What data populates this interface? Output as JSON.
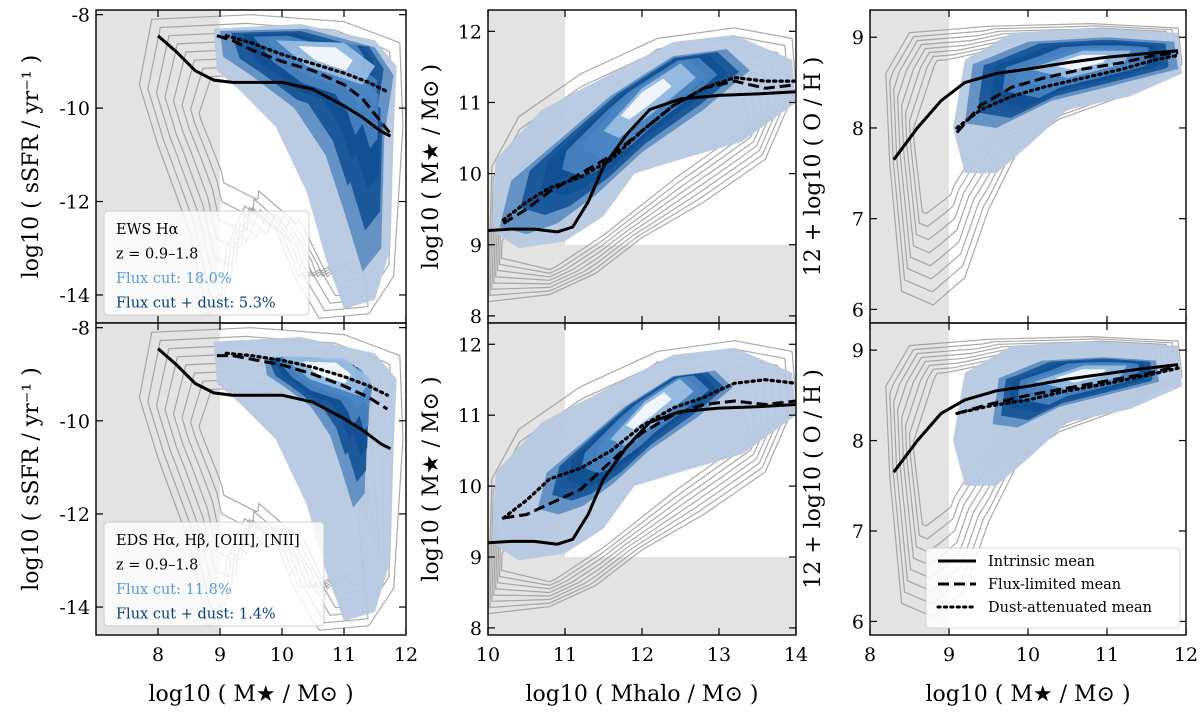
{
  "colors": {
    "excluded_region": "#e3e3e3",
    "parent_contour": "#9a9a9a",
    "density_light": "#b7c8df",
    "density_mid": "#5b8cc2",
    "density_dark": "#0e4f92",
    "density_core": "#ffffff",
    "flux_cut_text": "#5b9bd5",
    "flux_dust_text": "#0a3f7a"
  },
  "legend": {
    "intrinsic": "Intrinsic mean",
    "flux_limited": "Flux-limited mean",
    "dust_attenuated": "Dust-attenuated mean"
  },
  "annotations": {
    "ews": {
      "survey": "EWS Hα",
      "redshift": "z = 0.9–1.8",
      "flux_cut": "Flux cut: 18.0%",
      "flux_dust": "Flux cut + dust: 5.3%"
    },
    "eds": {
      "survey": "EDS Hα, Hβ, [OIII], [NII]",
      "redshift": "z = 0.9–1.8",
      "flux_cut": "Flux cut: 11.8%",
      "flux_dust": "Flux cut + dust: 1.4%"
    }
  },
  "chart_data": [
    {
      "id": "ews-ssfr",
      "type": "line",
      "xlabel": "log10 ( M★ / M⊙ )",
      "ylabel": "log10 ( sSFR / yr⁻¹ )",
      "xlim": [
        7,
        12
      ],
      "ylim": [
        -14.6,
        -7.9
      ],
      "xticks": [
        8,
        9,
        10,
        11,
        12
      ],
      "yticks": [
        -14,
        -12,
        -10,
        -8
      ],
      "excluded_region": {
        "x": [
          7,
          9
        ]
      },
      "series": [
        {
          "name": "Intrinsic mean",
          "style": "solid",
          "x": [
            8.0,
            8.3,
            8.6,
            8.9,
            9.2,
            9.5,
            10.0,
            10.5,
            11.0,
            11.3,
            11.6,
            11.75
          ],
          "y": [
            -8.45,
            -8.8,
            -9.2,
            -9.4,
            -9.45,
            -9.45,
            -9.45,
            -9.6,
            -9.95,
            -10.2,
            -10.5,
            -10.6
          ]
        },
        {
          "name": "Flux-limited mean",
          "style": "dashed",
          "x": [
            8.95,
            9.2,
            9.5,
            10.0,
            10.5,
            11.0,
            11.3,
            11.6,
            11.75
          ],
          "y": [
            -8.45,
            -8.55,
            -8.75,
            -9.0,
            -9.2,
            -9.5,
            -9.8,
            -10.3,
            -10.55
          ]
        },
        {
          "name": "Dust-attenuated mean",
          "style": "dotted",
          "x": [
            9.1,
            9.5,
            10.0,
            10.5,
            11.0,
            11.4,
            11.7
          ],
          "y": [
            -8.45,
            -8.6,
            -8.85,
            -9.05,
            -9.25,
            -9.45,
            -9.65
          ]
        }
      ]
    },
    {
      "id": "ews-shmr",
      "type": "line",
      "xlabel": "log10 ( Mhalo / M⊙ )",
      "ylabel": "log10 ( M★ / M⊙ )",
      "xlim": [
        10,
        14
      ],
      "ylim": [
        7.9,
        12.3
      ],
      "xticks": [
        10,
        11,
        12,
        13,
        14
      ],
      "yticks": [
        8,
        9,
        10,
        11,
        12
      ],
      "excluded_region": {
        "x": [
          10,
          11
        ],
        "y": [
          7.9,
          9
        ]
      },
      "series": [
        {
          "name": "Intrinsic mean",
          "style": "solid",
          "x": [
            10.0,
            10.3,
            10.6,
            10.9,
            11.1,
            11.3,
            11.5,
            11.8,
            12.1,
            12.5,
            13.0,
            13.5,
            14.0
          ],
          "y": [
            9.2,
            9.22,
            9.22,
            9.18,
            9.25,
            9.6,
            10.1,
            10.55,
            10.9,
            11.05,
            11.1,
            11.12,
            11.15
          ]
        },
        {
          "name": "Flux-limited mean",
          "style": "dashed",
          "x": [
            10.2,
            10.5,
            10.8,
            11.2,
            11.6,
            12.0,
            12.4,
            12.8,
            13.2,
            13.6,
            14.0
          ],
          "y": [
            9.3,
            9.5,
            9.75,
            10.0,
            10.25,
            10.6,
            10.95,
            11.2,
            11.3,
            11.2,
            11.25
          ]
        },
        {
          "name": "Dust-attenuated mean",
          "style": "dotted",
          "x": [
            10.2,
            10.5,
            10.8,
            11.2,
            11.6,
            12.0,
            12.4,
            12.8,
            13.2,
            13.6,
            14.0
          ],
          "y": [
            9.35,
            9.6,
            9.8,
            9.95,
            10.2,
            10.6,
            10.95,
            11.2,
            11.35,
            11.3,
            11.3
          ]
        }
      ]
    },
    {
      "id": "ews-mzr",
      "type": "line",
      "xlabel": "log10 ( M★ / M⊙ )",
      "ylabel": "12 + log10 ( O / H )",
      "xlim": [
        8,
        12
      ],
      "ylim": [
        5.85,
        9.3
      ],
      "xticks": [
        8,
        9,
        10,
        11,
        12
      ],
      "yticks": [
        6,
        7,
        8,
        9
      ],
      "excluded_region": {
        "x": [
          8,
          9
        ]
      },
      "series": [
        {
          "name": "Intrinsic mean",
          "style": "solid",
          "x": [
            8.3,
            8.6,
            8.9,
            9.2,
            9.6,
            10.0,
            10.5,
            11.0,
            11.5,
            11.9
          ],
          "y": [
            7.65,
            8.0,
            8.3,
            8.5,
            8.6,
            8.65,
            8.72,
            8.78,
            8.82,
            8.85
          ]
        },
        {
          "name": "Flux-limited mean",
          "style": "dashed",
          "x": [
            9.1,
            9.4,
            9.8,
            10.2,
            10.7,
            11.2,
            11.6,
            11.9
          ],
          "y": [
            7.95,
            8.25,
            8.45,
            8.55,
            8.65,
            8.72,
            8.8,
            8.83
          ]
        },
        {
          "name": "Dust-attenuated mean",
          "style": "dotted",
          "x": [
            9.1,
            9.4,
            9.8,
            10.2,
            10.7,
            11.2,
            11.6,
            11.9
          ],
          "y": [
            8.0,
            8.2,
            8.35,
            8.45,
            8.55,
            8.65,
            8.75,
            8.8
          ]
        }
      ]
    },
    {
      "id": "eds-ssfr",
      "type": "line",
      "xlabel": "log10 ( M★ / M⊙ )",
      "ylabel": "log10 ( sSFR / yr⁻¹ )",
      "xlim": [
        7,
        12
      ],
      "ylim": [
        -14.6,
        -7.9
      ],
      "xticks": [
        8,
        9,
        10,
        11,
        12
      ],
      "yticks": [
        -14,
        -12,
        -10,
        -8
      ],
      "excluded_region": {
        "x": [
          7,
          9
        ]
      },
      "series": [
        {
          "name": "Intrinsic mean",
          "style": "solid",
          "x": [
            8.0,
            8.3,
            8.6,
            8.9,
            9.2,
            9.5,
            10.0,
            10.5,
            11.0,
            11.3,
            11.6,
            11.75
          ],
          "y": [
            -8.45,
            -8.8,
            -9.2,
            -9.4,
            -9.45,
            -9.45,
            -9.45,
            -9.6,
            -9.95,
            -10.2,
            -10.5,
            -10.6
          ]
        },
        {
          "name": "Flux-limited mean",
          "style": "dashed",
          "x": [
            8.95,
            9.2,
            9.6,
            10.0,
            10.5,
            11.0,
            11.4,
            11.7
          ],
          "y": [
            -8.6,
            -8.6,
            -8.7,
            -8.8,
            -9.0,
            -9.25,
            -9.5,
            -9.75
          ]
        },
        {
          "name": "Dust-attenuated mean",
          "style": "dotted",
          "x": [
            9.1,
            9.5,
            10.0,
            10.5,
            11.0,
            11.4,
            11.7
          ],
          "y": [
            -8.55,
            -8.6,
            -8.7,
            -8.85,
            -9.05,
            -9.25,
            -9.45
          ]
        }
      ]
    },
    {
      "id": "eds-shmr",
      "type": "line",
      "xlabel": "log10 ( Mhalo / M⊙ )",
      "ylabel": "log10 ( M★ / M⊙ )",
      "xlim": [
        10,
        14
      ],
      "ylim": [
        7.9,
        12.3
      ],
      "xticks": [
        10,
        11,
        12,
        13,
        14
      ],
      "yticks": [
        8,
        9,
        10,
        11,
        12
      ],
      "excluded_region": {
        "x": [
          10,
          11
        ],
        "y": [
          7.9,
          9
        ]
      },
      "series": [
        {
          "name": "Intrinsic mean",
          "style": "solid",
          "x": [
            10.0,
            10.3,
            10.6,
            10.9,
            11.1,
            11.3,
            11.5,
            11.8,
            12.1,
            12.5,
            13.0,
            13.5,
            14.0
          ],
          "y": [
            9.2,
            9.22,
            9.22,
            9.18,
            9.25,
            9.6,
            10.1,
            10.55,
            10.9,
            11.05,
            11.1,
            11.12,
            11.15
          ]
        },
        {
          "name": "Flux-limited mean",
          "style": "dashed",
          "x": [
            10.2,
            10.5,
            10.8,
            11.2,
            11.6,
            12.0,
            12.4,
            12.8,
            13.2,
            13.6,
            14.0
          ],
          "y": [
            9.55,
            9.6,
            9.75,
            9.95,
            10.35,
            10.75,
            11.0,
            11.15,
            11.2,
            11.15,
            11.2
          ]
        },
        {
          "name": "Dust-attenuated mean",
          "style": "dotted",
          "x": [
            10.2,
            10.5,
            10.8,
            11.2,
            11.6,
            12.0,
            12.4,
            12.8,
            13.2,
            13.6,
            14.0
          ],
          "y": [
            9.55,
            9.8,
            10.1,
            10.25,
            10.5,
            10.85,
            11.1,
            11.25,
            11.45,
            11.5,
            11.45
          ]
        }
      ]
    },
    {
      "id": "eds-mzr",
      "type": "line",
      "xlabel": "log10 ( M★ / M⊙ )",
      "ylabel": "12 + log10 ( O / H )",
      "xlim": [
        8,
        12
      ],
      "ylim": [
        5.85,
        9.3
      ],
      "xticks": [
        8,
        9,
        10,
        11,
        12
      ],
      "yticks": [
        6,
        7,
        8,
        9
      ],
      "excluded_region": {
        "x": [
          8,
          9
        ]
      },
      "series": [
        {
          "name": "Intrinsic mean",
          "style": "solid",
          "x": [
            8.3,
            8.6,
            8.9,
            9.2,
            9.6,
            10.0,
            10.5,
            11.0,
            11.5,
            11.9
          ],
          "y": [
            7.65,
            8.0,
            8.3,
            8.45,
            8.55,
            8.6,
            8.68,
            8.74,
            8.8,
            8.84
          ]
        },
        {
          "name": "Flux-limited mean",
          "style": "dashed",
          "x": [
            9.1,
            9.5,
            10.0,
            10.5,
            11.0,
            11.5,
            11.9
          ],
          "y": [
            8.3,
            8.4,
            8.5,
            8.58,
            8.66,
            8.74,
            8.82
          ]
        },
        {
          "name": "Dust-attenuated mean",
          "style": "dotted",
          "x": [
            9.1,
            9.5,
            10.0,
            10.5,
            11.0,
            11.5,
            11.9
          ],
          "y": [
            8.3,
            8.38,
            8.45,
            8.55,
            8.63,
            8.72,
            8.8
          ]
        }
      ]
    }
  ]
}
